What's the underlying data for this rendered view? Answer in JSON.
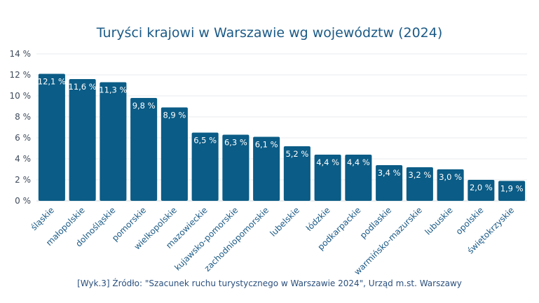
{
  "chart_data": {
    "type": "bar",
    "title": "Turyści krajowi w Warszawie wg województw (2024)",
    "xlabel": "",
    "ylabel": "",
    "ylim": [
      0,
      14
    ],
    "yticks": [
      "0 %",
      "2 %",
      "4 %",
      "6 %",
      "8 %",
      "10 %",
      "12 %",
      "14 %"
    ],
    "grid": true,
    "categories": [
      "śląskie",
      "małopolskie",
      "dolnośląskie",
      "pomorskie",
      "wielkopolskie",
      "mazowieckie",
      "kujawsko-pomorskie",
      "zachodniopomorskie",
      "lubelskie",
      "łódzkie",
      "podkarpackie",
      "podlaskie",
      "warmińsko-mazurskie",
      "lubuskie",
      "opolskie",
      "świętokrzyskie"
    ],
    "values": [
      12.1,
      11.6,
      11.3,
      9.8,
      8.9,
      6.5,
      6.3,
      6.1,
      5.2,
      4.4,
      4.4,
      3.4,
      3.2,
      3.0,
      2.0,
      1.9
    ],
    "data_labels": [
      "12,1 %",
      "11,6 %",
      "11,3 %",
      "9,8 %",
      "8,9 %",
      "6,5 %",
      "6,3 %",
      "6,1 %",
      "5,2 %",
      "4,4 %",
      "4,4 %",
      "3,4 %",
      "3,2 %",
      "3,0 %",
      "2,0 %",
      "1,9 %"
    ],
    "bar_color": "#0b5c86",
    "source": "[Wyk.3] Źródło: \"Szacunek ruchu turystycznego w Warszawie 2024\", Urząd m.st. Warszawy"
  }
}
